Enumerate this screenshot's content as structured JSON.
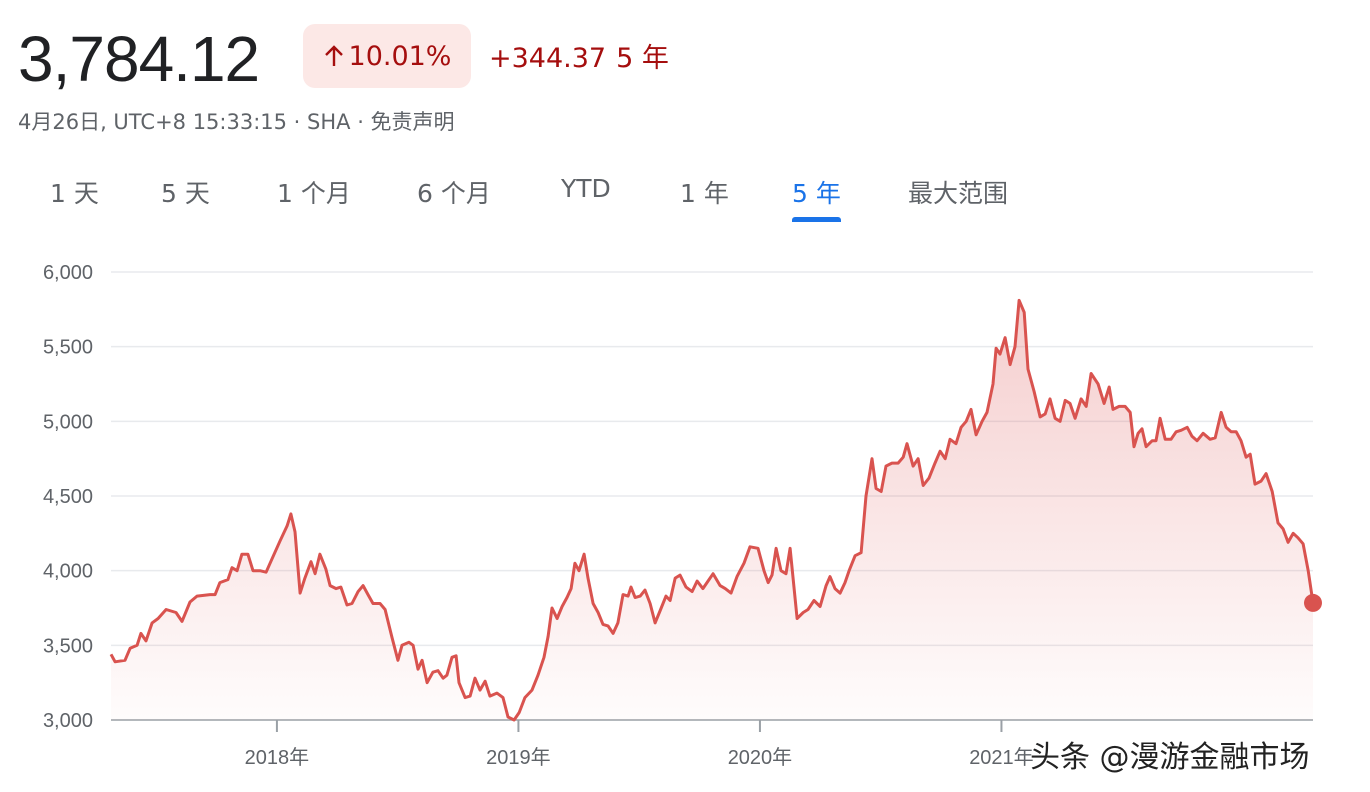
{
  "header": {
    "price": "3,784.12",
    "change_percent": "10.01%",
    "change_value": "+344.37",
    "change_period": "5 年",
    "timestamp": "4月26日, UTC+8 15:33:15 · SHA · 免责声明"
  },
  "tabs": [
    "1 天",
    "5 天",
    "1 个月",
    "6 个月",
    "YTD",
    "1 年",
    "5 年",
    "最大范围"
  ],
  "watermark": "头条 @漫游金融市场",
  "chart_data": {
    "type": "line",
    "color": "#d9534f",
    "grid": true,
    "xlim": [
      2017.313,
      2022.29
    ],
    "xticks": [
      {
        "value": 2018,
        "label": "2018年"
      },
      {
        "value": 2019,
        "label": "2019年"
      },
      {
        "value": 2020,
        "label": "2020年"
      },
      {
        "value": 2021,
        "label": "2021年"
      }
    ],
    "ylim": [
      3000,
      6000
    ],
    "yticks": [
      {
        "value": 3000,
        "label": "3,000"
      },
      {
        "value": 3500,
        "label": "3,500"
      },
      {
        "value": 4000,
        "label": "4,000"
      },
      {
        "value": 4500,
        "label": "4,500"
      },
      {
        "value": 5000,
        "label": "5,000"
      },
      {
        "value": 5500,
        "label": "5,500"
      },
      {
        "value": 6000,
        "label": "6,000"
      }
    ],
    "x": [
      2017.313,
      2017.33,
      2017.371,
      2017.392,
      2017.421,
      2017.437,
      2017.458,
      2017.483,
      2017.508,
      2017.541,
      2017.582,
      2017.607,
      2017.64,
      2017.669,
      2017.723,
      2017.744,
      2017.764,
      2017.797,
      2017.814,
      2017.835,
      2017.855,
      2017.88,
      2017.901,
      2017.93,
      2017.955,
      2017.98,
      2018.013,
      2018.042,
      2018.058,
      2018.075,
      2018.096,
      2018.116,
      2018.141,
      2018.158,
      2018.178,
      2018.203,
      2018.22,
      2018.245,
      2018.265,
      2018.29,
      2018.311,
      2018.336,
      2018.357,
      2018.377,
      2018.398,
      2018.427,
      2018.448,
      2018.477,
      2018.501,
      2018.518,
      2018.547,
      2018.564,
      2018.584,
      2018.601,
      2018.622,
      2018.646,
      2018.667,
      2018.688,
      2018.704,
      2018.725,
      2018.742,
      2018.754,
      2018.779,
      2018.8,
      2018.82,
      2018.841,
      2018.862,
      2018.882,
      2018.911,
      2018.936,
      2018.957,
      2018.982,
      2019.003,
      2019.027,
      2019.056,
      2019.081,
      2019.106,
      2019.123,
      2019.139,
      2019.16,
      2019.181,
      2019.201,
      2019.218,
      2019.234,
      2019.251,
      2019.272,
      2019.288,
      2019.309,
      2019.33,
      2019.35,
      2019.371,
      2019.392,
      2019.412,
      2019.433,
      2019.454,
      2019.466,
      2019.483,
      2019.504,
      2019.524,
      2019.545,
      2019.566,
      2019.586,
      2019.611,
      2019.628,
      2019.649,
      2019.669,
      2019.694,
      2019.719,
      2019.74,
      2019.764,
      2019.785,
      2019.806,
      2019.835,
      2019.856,
      2019.88,
      2019.905,
      2019.934,
      2019.959,
      2019.992,
      2020.017,
      2020.034,
      2020.05,
      2020.067,
      2020.087,
      2020.108,
      2020.125,
      2020.154,
      2020.179,
      2020.199,
      2020.224,
      2020.249,
      2020.274,
      2020.29,
      2020.311,
      2020.332,
      2020.352,
      2020.369,
      2020.394,
      2020.419,
      2020.439,
      2020.464,
      2020.481,
      2020.502,
      2020.522,
      2020.547,
      2020.572,
      2020.593,
      2020.609,
      2020.634,
      2020.655,
      2020.676,
      2020.7,
      2020.725,
      2020.746,
      2020.767,
      2020.787,
      2020.812,
      2020.833,
      2020.854,
      2020.874,
      2020.895,
      2020.92,
      2020.94,
      2020.965,
      2020.978,
      2020.994,
      2021.015,
      2021.036,
      2021.056,
      2021.073,
      2021.094,
      2021.11,
      2021.135,
      2021.16,
      2021.181,
      2021.201,
      2021.222,
      2021.243,
      2021.264,
      2021.284,
      2021.305,
      2021.33,
      2021.351,
      2021.371,
      2021.4,
      2021.425,
      2021.446,
      2021.462,
      2021.487,
      2021.512,
      2021.533,
      2021.549,
      2021.566,
      2021.582,
      2021.599,
      2021.624,
      2021.64,
      2021.657,
      2021.678,
      2021.702,
      2021.723,
      2021.744,
      2021.769,
      2021.789,
      2021.81,
      2021.835,
      2021.864,
      2021.885,
      2021.91,
      2021.93,
      2021.951,
      2021.972,
      2021.992,
      2022.013,
      2022.03,
      2022.05,
      2022.075,
      2022.096,
      2022.121,
      2022.145,
      2022.166,
      2022.187,
      2022.208,
      2022.228,
      2022.249,
      2022.27,
      2022.29
    ],
    "values": [
      3440,
      3390,
      3400,
      3480,
      3500,
      3580,
      3530,
      3650,
      3680,
      3740,
      3720,
      3660,
      3790,
      3830,
      3840,
      3840,
      3920,
      3940,
      4020,
      4000,
      4110,
      4110,
      4000,
      4000,
      3990,
      4080,
      4200,
      4300,
      4380,
      4260,
      3850,
      3950,
      4060,
      3980,
      4110,
      4010,
      3900,
      3880,
      3890,
      3770,
      3780,
      3860,
      3900,
      3840,
      3780,
      3780,
      3740,
      3550,
      3400,
      3500,
      3520,
      3500,
      3340,
      3400,
      3250,
      3320,
      3330,
      3280,
      3300,
      3420,
      3430,
      3250,
      3150,
      3160,
      3280,
      3200,
      3260,
      3160,
      3180,
      3150,
      3020,
      3000,
      3050,
      3150,
      3200,
      3300,
      3420,
      3560,
      3750,
      3680,
      3760,
      3820,
      3880,
      4050,
      4000,
      4110,
      3950,
      3780,
      3720,
      3640,
      3630,
      3580,
      3650,
      3840,
      3830,
      3890,
      3820,
      3830,
      3870,
      3780,
      3650,
      3730,
      3830,
      3800,
      3950,
      3970,
      3890,
      3860,
      3930,
      3880,
      3930,
      3980,
      3900,
      3880,
      3850,
      3960,
      4050,
      4160,
      4150,
      4000,
      3920,
      3970,
      4150,
      4000,
      3980,
      4150,
      3680,
      3720,
      3740,
      3800,
      3760,
      3900,
      3960,
      3880,
      3850,
      3920,
      4000,
      4100,
      4120,
      4500,
      4750,
      4550,
      4530,
      4700,
      4720,
      4720,
      4760,
      4850,
      4700,
      4750,
      4570,
      4620,
      4720,
      4800,
      4750,
      4880,
      4850,
      4960,
      5000,
      5080,
      4910,
      5000,
      5060,
      5250,
      5490,
      5450,
      5560,
      5380,
      5500,
      5810,
      5730,
      5350,
      5200,
      5030,
      5050,
      5150,
      5020,
      5000,
      5140,
      5120,
      5020,
      5150,
      5100,
      5320,
      5250,
      5120,
      5230,
      5080,
      5100,
      5100,
      5060,
      4830,
      4920,
      4950,
      4830,
      4870,
      4870,
      5020,
      4880,
      4880,
      4930,
      4940,
      4960,
      4900,
      4870,
      4920,
      4880,
      4890,
      5060,
      4960,
      4930,
      4930,
      4870,
      4760,
      4780,
      4580,
      4600,
      4650,
      4530,
      4320,
      4280,
      4190,
      4250,
      4220,
      4180,
      4000,
      3784.12
    ]
  }
}
